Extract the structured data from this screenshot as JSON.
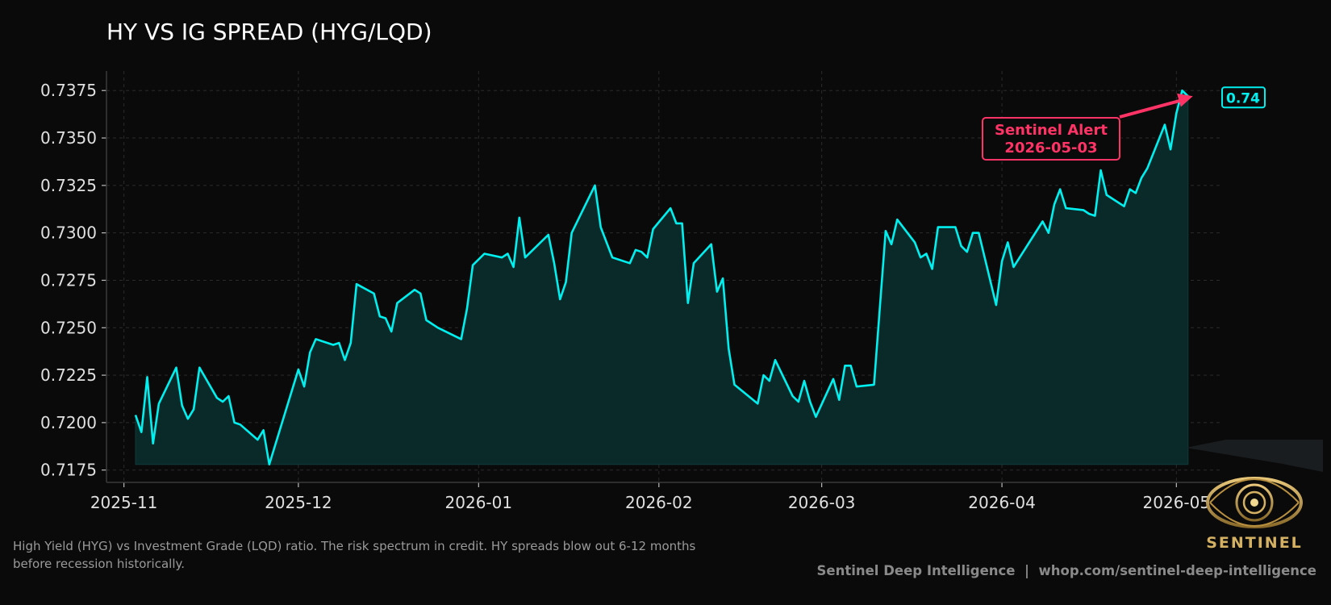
{
  "chart_data": {
    "type": "area",
    "title": "HY VS IG SPREAD (HYG/LQD)",
    "xlabel": "",
    "ylabel": "",
    "x_ticks": [
      "2025-11",
      "2025-12",
      "2026-01",
      "2026-02",
      "2026-03",
      "2026-04",
      "2026-05"
    ],
    "y_ticks": [
      "0.7175",
      "0.7200",
      "0.7225",
      "0.7250",
      "0.7275",
      "0.7300",
      "0.7325",
      "0.7350",
      "0.7375"
    ],
    "xlim": [
      "2025-10-29",
      "2026-05-09"
    ],
    "ylim": [
      0.71685,
      0.73853
    ],
    "grid": true,
    "colors": {
      "line": "#00f0f0",
      "fill": "#0a2a2a",
      "alert": "#ff3366",
      "background": "#0a0a0a"
    },
    "last_value_label": "0.74",
    "annotation": {
      "text_line1": "Sentinel Alert",
      "text_line2": "2026-05-03",
      "x": "2026-05-03",
      "y": 0.7372
    },
    "series": [
      {
        "points": [
          [
            "2025-11-03",
            0.7204
          ],
          [
            "2025-11-04",
            0.7195
          ],
          [
            "2025-11-05",
            0.7224
          ],
          [
            "2025-11-06",
            0.7189
          ],
          [
            "2025-11-07",
            0.721
          ],
          [
            "2025-11-10",
            0.7229
          ],
          [
            "2025-11-11",
            0.7209
          ],
          [
            "2025-11-12",
            0.7202
          ],
          [
            "2025-11-13",
            0.7207
          ],
          [
            "2025-11-14",
            0.7229
          ],
          [
            "2025-11-17",
            0.7213
          ],
          [
            "2025-11-18",
            0.7211
          ],
          [
            "2025-11-19",
            0.7214
          ],
          [
            "2025-11-20",
            0.72
          ],
          [
            "2025-11-21",
            0.7199
          ],
          [
            "2025-11-24",
            0.7191
          ],
          [
            "2025-11-25",
            0.7196
          ],
          [
            "2025-11-26",
            0.7178
          ],
          [
            "2025-12-01",
            0.7228
          ],
          [
            "2025-12-02",
            0.7219
          ],
          [
            "2025-12-03",
            0.7237
          ],
          [
            "2025-12-04",
            0.7244
          ],
          [
            "2025-12-07",
            0.7241
          ],
          [
            "2025-12-08",
            0.7242
          ],
          [
            "2025-12-09",
            0.7233
          ],
          [
            "2025-12-10",
            0.7242
          ],
          [
            "2025-12-11",
            0.7273
          ],
          [
            "2025-12-14",
            0.7268
          ],
          [
            "2025-12-15",
            0.7256
          ],
          [
            "2025-12-16",
            0.7255
          ],
          [
            "2025-12-17",
            0.7248
          ],
          [
            "2025-12-18",
            0.7263
          ],
          [
            "2025-12-21",
            0.727
          ],
          [
            "2025-12-22",
            0.7268
          ],
          [
            "2025-12-23",
            0.7254
          ],
          [
            "2025-12-25",
            0.725
          ],
          [
            "2025-12-29",
            0.7244
          ],
          [
            "2025-12-30",
            0.726
          ],
          [
            "2025-12-31",
            0.7283
          ],
          [
            "2026-01-02",
            0.7289
          ],
          [
            "2026-01-05",
            0.7287
          ],
          [
            "2026-01-06",
            0.7289
          ],
          [
            "2026-01-07",
            0.7282
          ],
          [
            "2026-01-08",
            0.7308
          ],
          [
            "2026-01-09",
            0.7287
          ],
          [
            "2026-01-13",
            0.7299
          ],
          [
            "2026-01-14",
            0.7284
          ],
          [
            "2026-01-15",
            0.7265
          ],
          [
            "2026-01-16",
            0.7274
          ],
          [
            "2026-01-17",
            0.73
          ],
          [
            "2026-01-21",
            0.7325
          ],
          [
            "2026-01-22",
            0.7303
          ],
          [
            "2026-01-24",
            0.7287
          ],
          [
            "2026-01-27",
            0.7284
          ],
          [
            "2026-01-28",
            0.7291
          ],
          [
            "2026-01-29",
            0.729
          ],
          [
            "2026-01-30",
            0.7287
          ],
          [
            "2026-01-31",
            0.7302
          ],
          [
            "2026-02-03",
            0.7313
          ],
          [
            "2026-02-04",
            0.7305
          ],
          [
            "2026-02-05",
            0.7305
          ],
          [
            "2026-02-06",
            0.7263
          ],
          [
            "2026-02-07",
            0.7284
          ],
          [
            "2026-02-10",
            0.7294
          ],
          [
            "2026-02-11",
            0.7269
          ],
          [
            "2026-02-12",
            0.7276
          ],
          [
            "2026-02-13",
            0.7239
          ],
          [
            "2026-02-14",
            0.722
          ],
          [
            "2026-02-18",
            0.721
          ],
          [
            "2026-02-19",
            0.7225
          ],
          [
            "2026-02-20",
            0.7222
          ],
          [
            "2026-02-21",
            0.7233
          ],
          [
            "2026-02-24",
            0.7214
          ],
          [
            "2026-02-25",
            0.7211
          ],
          [
            "2026-02-26",
            0.7222
          ],
          [
            "2026-02-27",
            0.7211
          ],
          [
            "2026-02-28",
            0.7203
          ],
          [
            "2026-03-03",
            0.7223
          ],
          [
            "2026-03-04",
            0.7212
          ],
          [
            "2026-03-05",
            0.723
          ],
          [
            "2026-03-06",
            0.723
          ],
          [
            "2026-03-07",
            0.7219
          ],
          [
            "2026-03-10",
            0.722
          ],
          [
            "2026-03-12",
            0.7301
          ],
          [
            "2026-03-13",
            0.7294
          ],
          [
            "2026-03-14",
            0.7307
          ],
          [
            "2026-03-17",
            0.7295
          ],
          [
            "2026-03-18",
            0.7287
          ],
          [
            "2026-03-19",
            0.7289
          ],
          [
            "2026-03-20",
            0.7281
          ],
          [
            "2026-03-21",
            0.7303
          ],
          [
            "2026-03-24",
            0.7303
          ],
          [
            "2026-03-25",
            0.7293
          ],
          [
            "2026-03-26",
            0.729
          ],
          [
            "2026-03-27",
            0.73
          ],
          [
            "2026-03-28",
            0.73
          ],
          [
            "2026-03-31",
            0.7262
          ],
          [
            "2026-04-01",
            0.7285
          ],
          [
            "2026-04-02",
            0.7295
          ],
          [
            "2026-04-03",
            0.7282
          ],
          [
            "2026-04-08",
            0.7306
          ],
          [
            "2026-04-09",
            0.73
          ],
          [
            "2026-04-10",
            0.7315
          ],
          [
            "2026-04-11",
            0.7323
          ],
          [
            "2026-04-12",
            0.7313
          ],
          [
            "2026-04-15",
            0.7312
          ],
          [
            "2026-04-16",
            0.731
          ],
          [
            "2026-04-17",
            0.7309
          ],
          [
            "2026-04-18",
            0.7333
          ],
          [
            "2026-04-19",
            0.732
          ],
          [
            "2026-04-22",
            0.7314
          ],
          [
            "2026-04-23",
            0.7323
          ],
          [
            "2026-04-24",
            0.7321
          ],
          [
            "2026-04-25",
            0.7329
          ],
          [
            "2026-04-26",
            0.7334
          ],
          [
            "2026-04-29",
            0.7357
          ],
          [
            "2026-04-30",
            0.7344
          ],
          [
            "2026-05-01",
            0.7363
          ],
          [
            "2026-05-02",
            0.7375
          ],
          [
            "2026-05-03",
            0.7372
          ]
        ]
      }
    ]
  },
  "caption": "High Yield (HYG) vs Investment Grade (LQD) ratio. The risk spectrum in credit. HY spreads blow out 6-12 months before recession historically.",
  "footer": "Sentinel Deep Intelligence  |  whop.com/sentinel-deep-intelligence",
  "logo": {
    "text": "SENTINEL",
    "icon": "eye-emblem-icon"
  }
}
